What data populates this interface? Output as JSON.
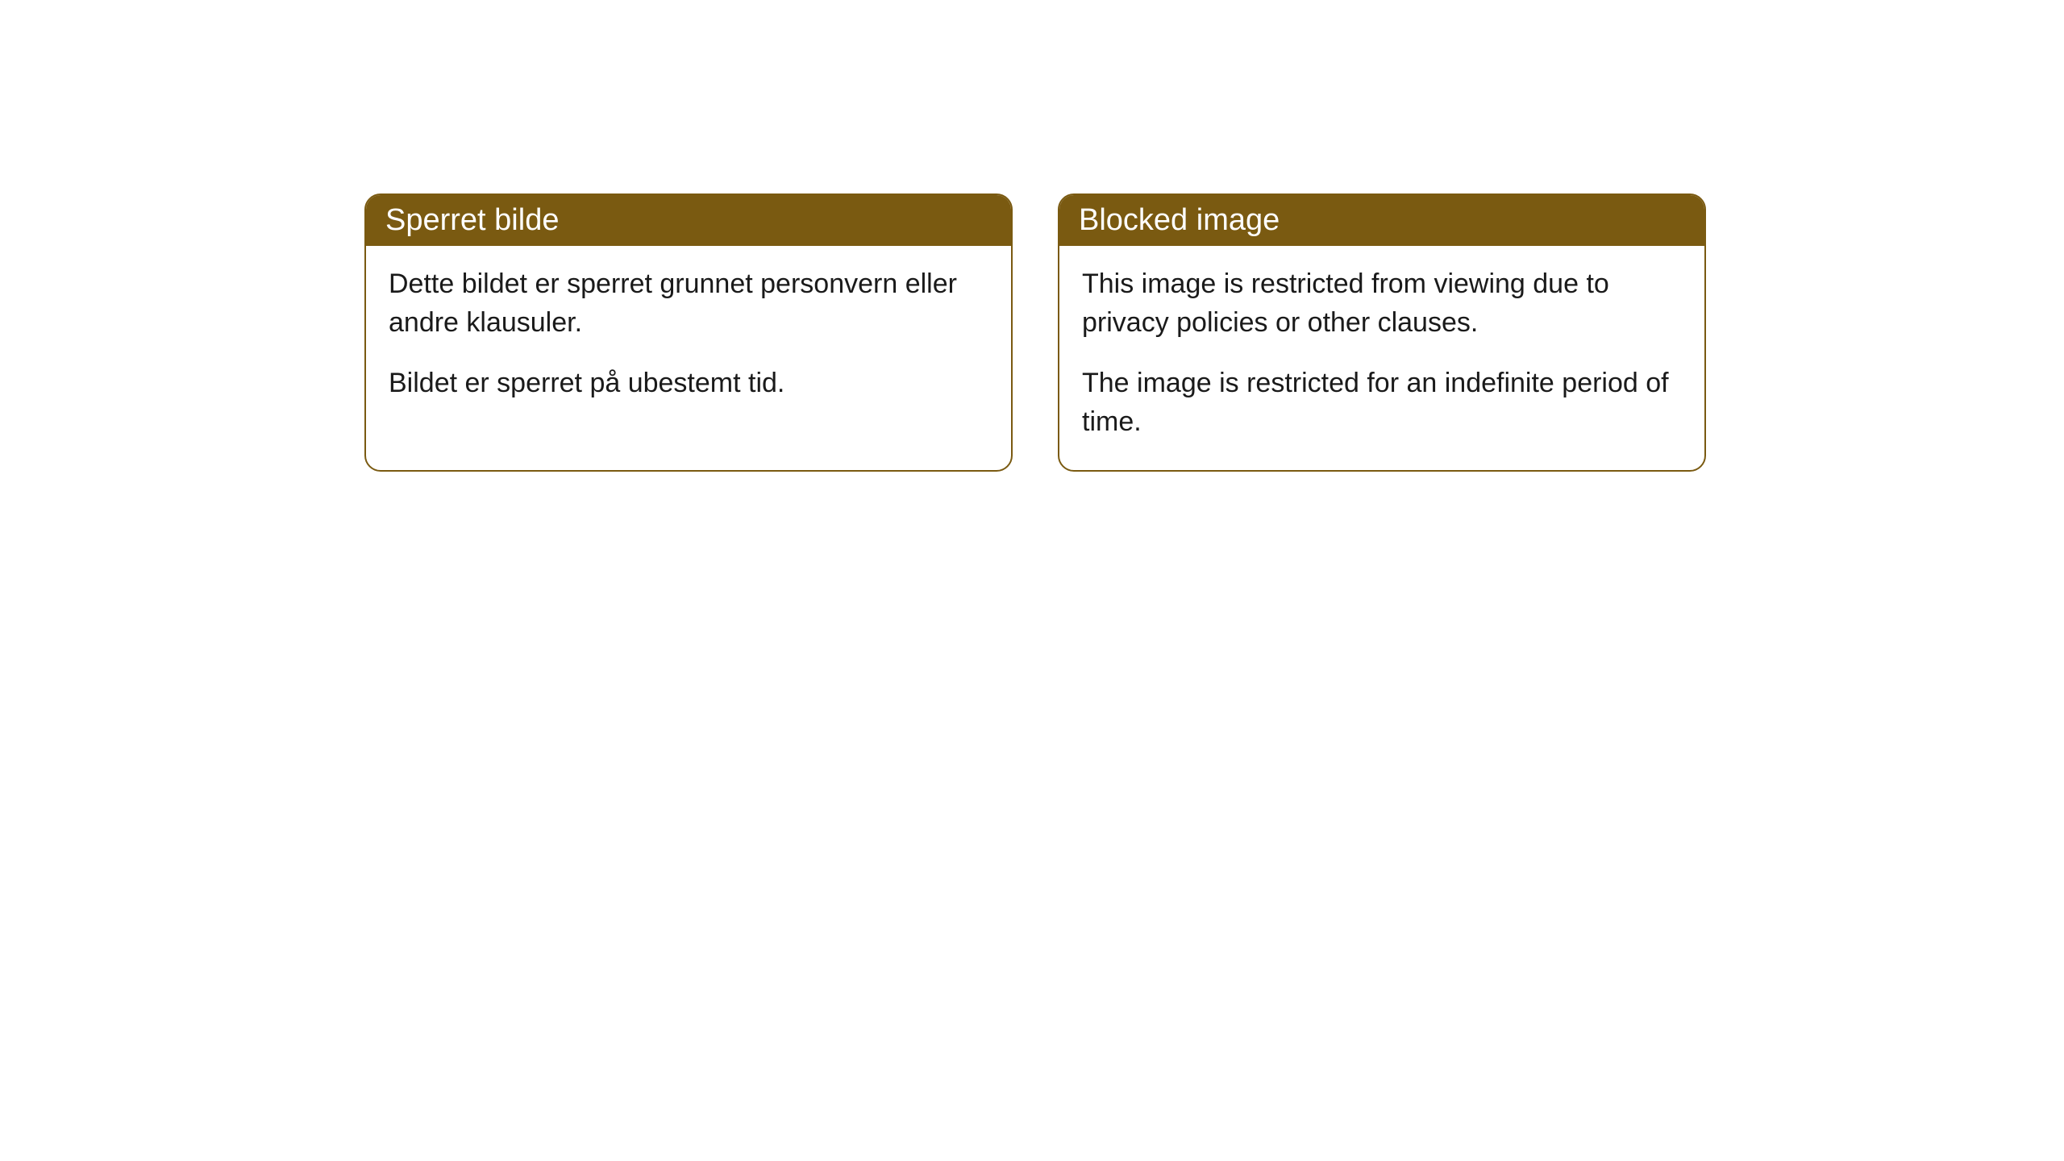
{
  "cards": [
    {
      "title": "Sperret bilde",
      "paragraph1": "Dette bildet er sperret grunnet personvern eller andre klausuler.",
      "paragraph2": "Bildet er sperret på ubestemt tid."
    },
    {
      "title": "Blocked image",
      "paragraph1": "This image is restricted from viewing due to privacy policies or other clauses.",
      "paragraph2": "The image is restricted for an indefinite period of time."
    }
  ],
  "styling": {
    "header_background": "#7a5a11",
    "header_text_color": "#ffffff",
    "border_color": "#7a5a11",
    "body_background": "#ffffff",
    "body_text_color": "#1a1a1a",
    "border_radius": 20,
    "header_fontsize": 38,
    "body_fontsize": 34
  }
}
